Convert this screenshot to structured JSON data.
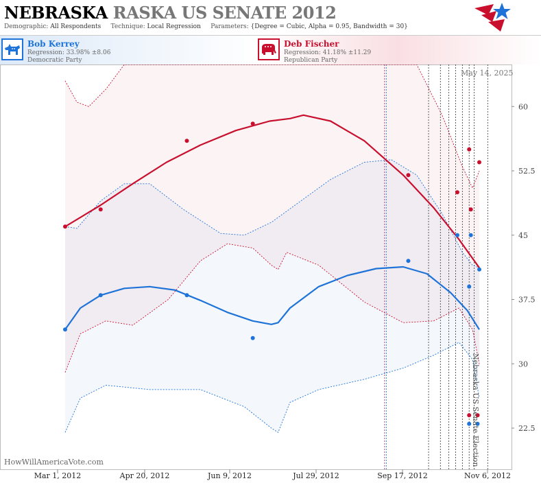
{
  "header": {
    "title_state": "NEBRASKA",
    "title_rest": "RASKA US SENATE 2012",
    "demographic_label": "Demographic:",
    "demographic_value": "All Respondents",
    "technique_label": "Technique:",
    "technique_value": "Local Regression",
    "parameters_label": "Parameters:",
    "parameters_value": "{Degree = Cubic, Alpha = 0.95, Bandwidth = 30}"
  },
  "candidates": [
    {
      "name": "Bob Kerrey",
      "regression": "Regression: 33.98% ±8.06",
      "party": "Democratic Party",
      "color": "#1e73d8",
      "icon": "donkey-icon"
    },
    {
      "name": "Deb Fischer",
      "regression": "Regression: 41.18% ±11.29",
      "party": "Republican Party",
      "color": "#c8102e",
      "icon": "elephant-icon"
    }
  ],
  "credit": "HowWillAmericaVote.com",
  "date_stamp": "May 14, 2025",
  "vertical_title": "Nebraska US Senate Election",
  "chart_data": {
    "type": "line",
    "x_ticks": [
      "Mar 1, 2012",
      "Apr 20, 2012",
      "Jun 9, 2012",
      "Jul 29, 2012",
      "Sep 17, 2012",
      "Nov 6, 2012"
    ],
    "y_ticks": [
      "22.5",
      "30",
      "37.5",
      "45",
      "52.5",
      "60"
    ],
    "ylim": [
      20,
      65
    ],
    "grid": false,
    "poll_date_markers": [
      "2012-09-06",
      "2012-09-07",
      "2012-10-02",
      "2012-10-09",
      "2012-10-14",
      "2012-10-18",
      "2012-10-22",
      "2012-10-26",
      "2012-10-29",
      "2012-11-06"
    ],
    "marker_colors": [
      "#8a1a4a",
      "#1e73d8",
      "#333",
      "#333",
      "#333",
      "#333",
      "#333",
      "#333",
      "#333",
      "#333"
    ],
    "series": [
      {
        "name": "Bob Kerrey",
        "color": "#1e73d8",
        "points": [
          [
            "2012-03-01",
            34
          ],
          [
            "2012-03-22",
            38
          ],
          [
            "2012-05-12",
            38
          ],
          [
            "2012-06-20",
            33
          ],
          [
            "2012-09-20",
            42
          ],
          [
            "2012-10-19",
            45
          ],
          [
            "2012-10-26",
            39
          ],
          [
            "2012-10-27",
            45
          ],
          [
            "2012-11-01",
            41
          ],
          [
            "2012-10-26",
            23
          ],
          [
            "2012-10-31",
            23
          ]
        ],
        "fit": [
          [
            "2012-03-01",
            34
          ],
          [
            "2012-03-10",
            36.5
          ],
          [
            "2012-03-22",
            38
          ],
          [
            "2012-04-05",
            38.8
          ],
          [
            "2012-04-20",
            39
          ],
          [
            "2012-05-05",
            38.6
          ],
          [
            "2012-05-20",
            37.4
          ],
          [
            "2012-06-05",
            36
          ],
          [
            "2012-06-20",
            35
          ],
          [
            "2012-07-01",
            34.6
          ],
          [
            "2012-07-05",
            34.8
          ],
          [
            "2012-07-12",
            36.5
          ],
          [
            "2012-07-29",
            39
          ],
          [
            "2012-08-15",
            40.3
          ],
          [
            "2012-09-01",
            41.1
          ],
          [
            "2012-09-17",
            41.3
          ],
          [
            "2012-10-01",
            40.5
          ],
          [
            "2012-10-15",
            38.3
          ],
          [
            "2012-10-25",
            36.2
          ],
          [
            "2012-11-01",
            34
          ]
        ],
        "upper": [
          [
            "2012-03-01",
            46
          ],
          [
            "2012-03-08",
            45.8
          ],
          [
            "2012-03-22",
            49
          ],
          [
            "2012-04-05",
            51
          ],
          [
            "2012-04-20",
            51
          ],
          [
            "2012-05-10",
            48
          ],
          [
            "2012-06-01",
            45.2
          ],
          [
            "2012-06-15",
            45
          ],
          [
            "2012-07-01",
            46.5
          ],
          [
            "2012-07-15",
            48.5
          ],
          [
            "2012-08-05",
            51.5
          ],
          [
            "2012-08-25",
            53.5
          ],
          [
            "2012-09-10",
            53.8
          ],
          [
            "2012-09-25",
            52
          ],
          [
            "2012-10-10",
            47.5
          ],
          [
            "2012-10-22",
            43
          ],
          [
            "2012-10-28",
            41.5
          ],
          [
            "2012-11-01",
            41.2
          ]
        ],
        "lower": [
          [
            "2012-03-01",
            22
          ],
          [
            "2012-03-10",
            26
          ],
          [
            "2012-03-25",
            27.5
          ],
          [
            "2012-04-20",
            27
          ],
          [
            "2012-05-20",
            27
          ],
          [
            "2012-06-15",
            25
          ],
          [
            "2012-07-01",
            22.5
          ],
          [
            "2012-07-05",
            22
          ],
          [
            "2012-07-12",
            25.5
          ],
          [
            "2012-07-29",
            27
          ],
          [
            "2012-08-25",
            28.2
          ],
          [
            "2012-09-17",
            29.5
          ],
          [
            "2012-10-05",
            31
          ],
          [
            "2012-10-20",
            32.5
          ],
          [
            "2012-10-28",
            30.5
          ],
          [
            "2012-11-01",
            26
          ]
        ]
      },
      {
        "name": "Deb Fischer",
        "color": "#c8102e",
        "points": [
          [
            "2012-03-01",
            46
          ],
          [
            "2012-03-22",
            48
          ],
          [
            "2012-05-12",
            56
          ],
          [
            "2012-06-20",
            58
          ],
          [
            "2012-09-20",
            52
          ],
          [
            "2012-10-19",
            50
          ],
          [
            "2012-10-26",
            55
          ],
          [
            "2012-10-27",
            48
          ],
          [
            "2012-11-01",
            53.5
          ],
          [
            "2012-10-26",
            24
          ],
          [
            "2012-10-31",
            24
          ]
        ],
        "fit": [
          [
            "2012-03-01",
            46
          ],
          [
            "2012-03-22",
            48.5
          ],
          [
            "2012-04-10",
            51
          ],
          [
            "2012-04-30",
            53.5
          ],
          [
            "2012-05-20",
            55.5
          ],
          [
            "2012-06-10",
            57.2
          ],
          [
            "2012-06-30",
            58.3
          ],
          [
            "2012-07-12",
            58.6
          ],
          [
            "2012-07-20",
            59
          ],
          [
            "2012-08-05",
            58.3
          ],
          [
            "2012-08-25",
            56
          ],
          [
            "2012-09-17",
            52
          ],
          [
            "2012-10-05",
            48.2
          ],
          [
            "2012-10-20",
            44.5
          ],
          [
            "2012-11-01",
            41.2
          ]
        ],
        "upper": [
          [
            "2012-03-01",
            63
          ],
          [
            "2012-03-08",
            60.5
          ],
          [
            "2012-03-15",
            60
          ],
          [
            "2012-03-25",
            62
          ],
          [
            "2012-04-05",
            65
          ],
          [
            "2012-09-25",
            65
          ],
          [
            "2012-10-10",
            59
          ],
          [
            "2012-10-22",
            53
          ],
          [
            "2012-10-28",
            50.5
          ],
          [
            "2012-11-01",
            52.5
          ]
        ],
        "lower": [
          [
            "2012-03-01",
            29
          ],
          [
            "2012-03-10",
            33.5
          ],
          [
            "2012-03-25",
            35
          ],
          [
            "2012-04-10",
            34.5
          ],
          [
            "2012-05-01",
            37.5
          ],
          [
            "2012-05-20",
            42
          ],
          [
            "2012-06-05",
            44
          ],
          [
            "2012-06-20",
            43.5
          ],
          [
            "2012-07-01",
            41.5
          ],
          [
            "2012-07-05",
            41
          ],
          [
            "2012-07-10",
            43
          ],
          [
            "2012-07-29",
            41.5
          ],
          [
            "2012-08-25",
            37.2
          ],
          [
            "2012-09-17",
            34.8
          ],
          [
            "2012-10-05",
            35
          ],
          [
            "2012-10-20",
            36.5
          ],
          [
            "2012-10-28",
            34
          ],
          [
            "2012-11-01",
            30
          ]
        ]
      }
    ]
  }
}
